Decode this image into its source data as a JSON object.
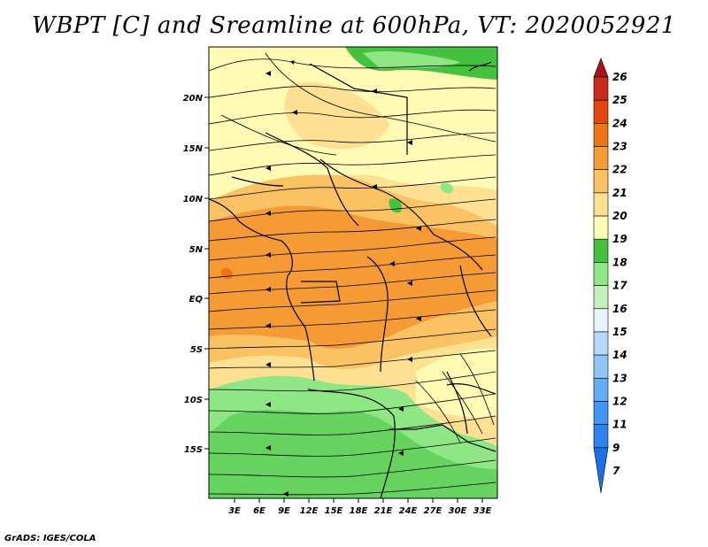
{
  "title": "WBPT [C] and Sreamline at 600hPa, VT: 2020052921",
  "credit": "GrADS: IGES/COLA",
  "map": {
    "lat_labels": [
      "20N",
      "15N",
      "10N",
      "5N",
      "EQ",
      "5S",
      "10S",
      "15S"
    ],
    "lon_labels": [
      "3E",
      "6E",
      "9E",
      "12E",
      "15E",
      "18E",
      "21E",
      "24E",
      "27E",
      "30E",
      "33E"
    ]
  },
  "colorbar": {
    "levels": [
      {
        "value": "7",
        "color": "#1f6ee6"
      },
      {
        "value": "9",
        "color": "#2d83ee"
      },
      {
        "value": "11",
        "color": "#4096f2"
      },
      {
        "value": "12",
        "color": "#64acf5"
      },
      {
        "value": "13",
        "color": "#8ec4f8"
      },
      {
        "value": "14",
        "color": "#b5d9fb"
      },
      {
        "value": "15",
        "color": "#e4f5fd"
      },
      {
        "value": "16",
        "color": "#c2f2bc"
      },
      {
        "value": "17",
        "color": "#8fe684"
      },
      {
        "value": "18",
        "color": "#44c23f"
      },
      {
        "value": "19",
        "color": "#fffab4"
      },
      {
        "value": "20",
        "color": "#fde092"
      },
      {
        "value": "21",
        "color": "#fbc264"
      },
      {
        "value": "22",
        "color": "#f59a35"
      },
      {
        "value": "23",
        "color": "#ec7515"
      },
      {
        "value": "24",
        "color": "#e2460c"
      },
      {
        "value": "25",
        "color": "#c92a1a"
      },
      {
        "value": "26",
        "color": "#a41418"
      }
    ]
  }
}
